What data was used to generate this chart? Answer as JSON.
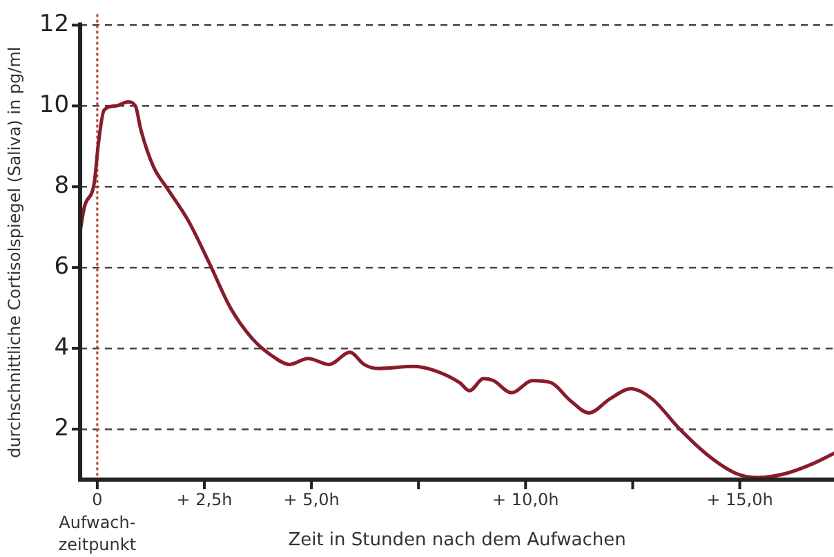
{
  "chart_data": {
    "type": "line",
    "xlabel": "Zeit in Stunden nach dem Aufwachen",
    "ylabel": "durchschnittliche Cortisolspiegel (Saliva) in pg/ml",
    "x": [
      -0.4,
      -0.3,
      -0.07,
      0.03,
      0.16,
      0.43,
      0.72,
      0.89,
      1.02,
      1.31,
      1.64,
      2.13,
      2.62,
      3.11,
      3.61,
      4.1,
      4.49,
      4.92,
      5.41,
      5.9,
      6.23,
      6.56,
      7.38,
      7.87,
      8.46,
      8.69,
      9.02,
      9.25,
      9.67,
      10.16,
      10.59,
      11.05,
      11.48,
      11.97,
      12.46,
      12.95,
      13.6,
      14.26,
      14.92,
      15.41,
      16.07,
      16.72,
      17.2
    ],
    "series": [
      {
        "color": "#8b1a2a",
        "values": [
          6.9,
          7.5,
          8.1,
          9.1,
          9.9,
          10.0,
          10.1,
          10.0,
          9.4,
          8.5,
          7.95,
          7.15,
          6.1,
          5.0,
          4.25,
          3.8,
          3.6,
          3.75,
          3.6,
          3.9,
          3.6,
          3.5,
          3.55,
          3.45,
          3.15,
          2.95,
          3.25,
          3.2,
          2.9,
          3.2,
          3.15,
          2.7,
          2.4,
          2.75,
          3.0,
          2.75,
          2.0,
          1.35,
          0.9,
          0.8,
          0.9,
          1.15,
          1.4
        ]
      }
    ],
    "xlim": [
      -0.4,
      17.2
    ],
    "ylim": [
      0.75,
      12
    ],
    "xticks": [
      {
        "value": 0,
        "label": "0"
      },
      {
        "value": 2.5,
        "label": "+ 2,5h"
      },
      {
        "value": 5,
        "label": "+ 5,0h"
      },
      {
        "value": 7.5,
        "label": null
      },
      {
        "value": 10,
        "label": "+ 10,0h"
      },
      {
        "value": 12.5,
        "label": null
      },
      {
        "value": 15,
        "label": "+ 15,0h"
      }
    ],
    "yticks": [
      2,
      4,
      6,
      8,
      10,
      12
    ],
    "grid": "y",
    "legend": false,
    "marker": "none",
    "line_style": "solid",
    "annotations": [
      "Aufwach-zeitpunkt"
    ],
    "ref_lines": [
      {
        "axis": "x",
        "value": 0,
        "color": "#c0392b",
        "line_style": "dotted"
      }
    ]
  }
}
